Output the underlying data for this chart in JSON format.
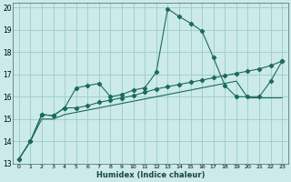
{
  "xlabel": "Humidex (Indice chaleur)",
  "bg_color": "#cceaea",
  "grid_color": "#99cccc",
  "line_color": "#1a6b5a",
  "xlim": [
    -0.5,
    23.5
  ],
  "ylim": [
    13,
    20.2
  ],
  "xticks": [
    0,
    1,
    2,
    3,
    4,
    5,
    6,
    7,
    8,
    9,
    10,
    11,
    12,
    13,
    14,
    15,
    16,
    17,
    18,
    19,
    20,
    21,
    22,
    23
  ],
  "yticks": [
    13,
    14,
    15,
    16,
    17,
    18,
    19,
    20
  ],
  "series1_x": [
    0,
    1,
    2,
    3,
    4,
    5,
    6,
    7,
    8,
    9,
    10,
    11,
    12,
    13,
    14,
    15,
    16,
    17,
    18,
    19,
    20,
    21,
    22,
    23
  ],
  "series1_y": [
    13.2,
    14.0,
    15.2,
    15.15,
    15.5,
    16.4,
    16.5,
    16.6,
    16.0,
    16.1,
    16.3,
    16.4,
    17.1,
    19.95,
    19.6,
    19.3,
    18.95,
    17.75,
    16.5,
    16.0,
    16.0,
    16.0,
    16.7,
    17.6
  ],
  "series2_x": [
    0,
    1,
    2,
    3,
    4,
    5,
    6,
    7,
    8,
    9,
    10,
    11,
    12,
    13,
    14,
    15,
    16,
    17,
    18,
    19,
    20,
    21,
    22,
    23
  ],
  "series2_y": [
    13.2,
    14.0,
    15.2,
    15.15,
    15.5,
    15.5,
    15.6,
    15.75,
    15.85,
    15.95,
    16.05,
    16.2,
    16.35,
    16.45,
    16.55,
    16.65,
    16.75,
    16.85,
    16.95,
    17.05,
    17.15,
    17.25,
    17.4,
    17.6
  ],
  "series3_x": [
    0,
    1,
    2,
    3,
    4,
    5,
    6,
    7,
    8,
    9,
    10,
    11,
    12,
    13,
    14,
    15,
    16,
    17,
    18,
    19,
    20,
    21,
    22,
    23
  ],
  "series3_y": [
    13.2,
    14.0,
    15.0,
    15.0,
    15.2,
    15.3,
    15.4,
    15.5,
    15.6,
    15.7,
    15.8,
    15.9,
    16.0,
    16.1,
    16.2,
    16.3,
    16.4,
    16.5,
    16.6,
    16.7,
    15.95,
    15.95,
    15.95,
    15.95
  ]
}
